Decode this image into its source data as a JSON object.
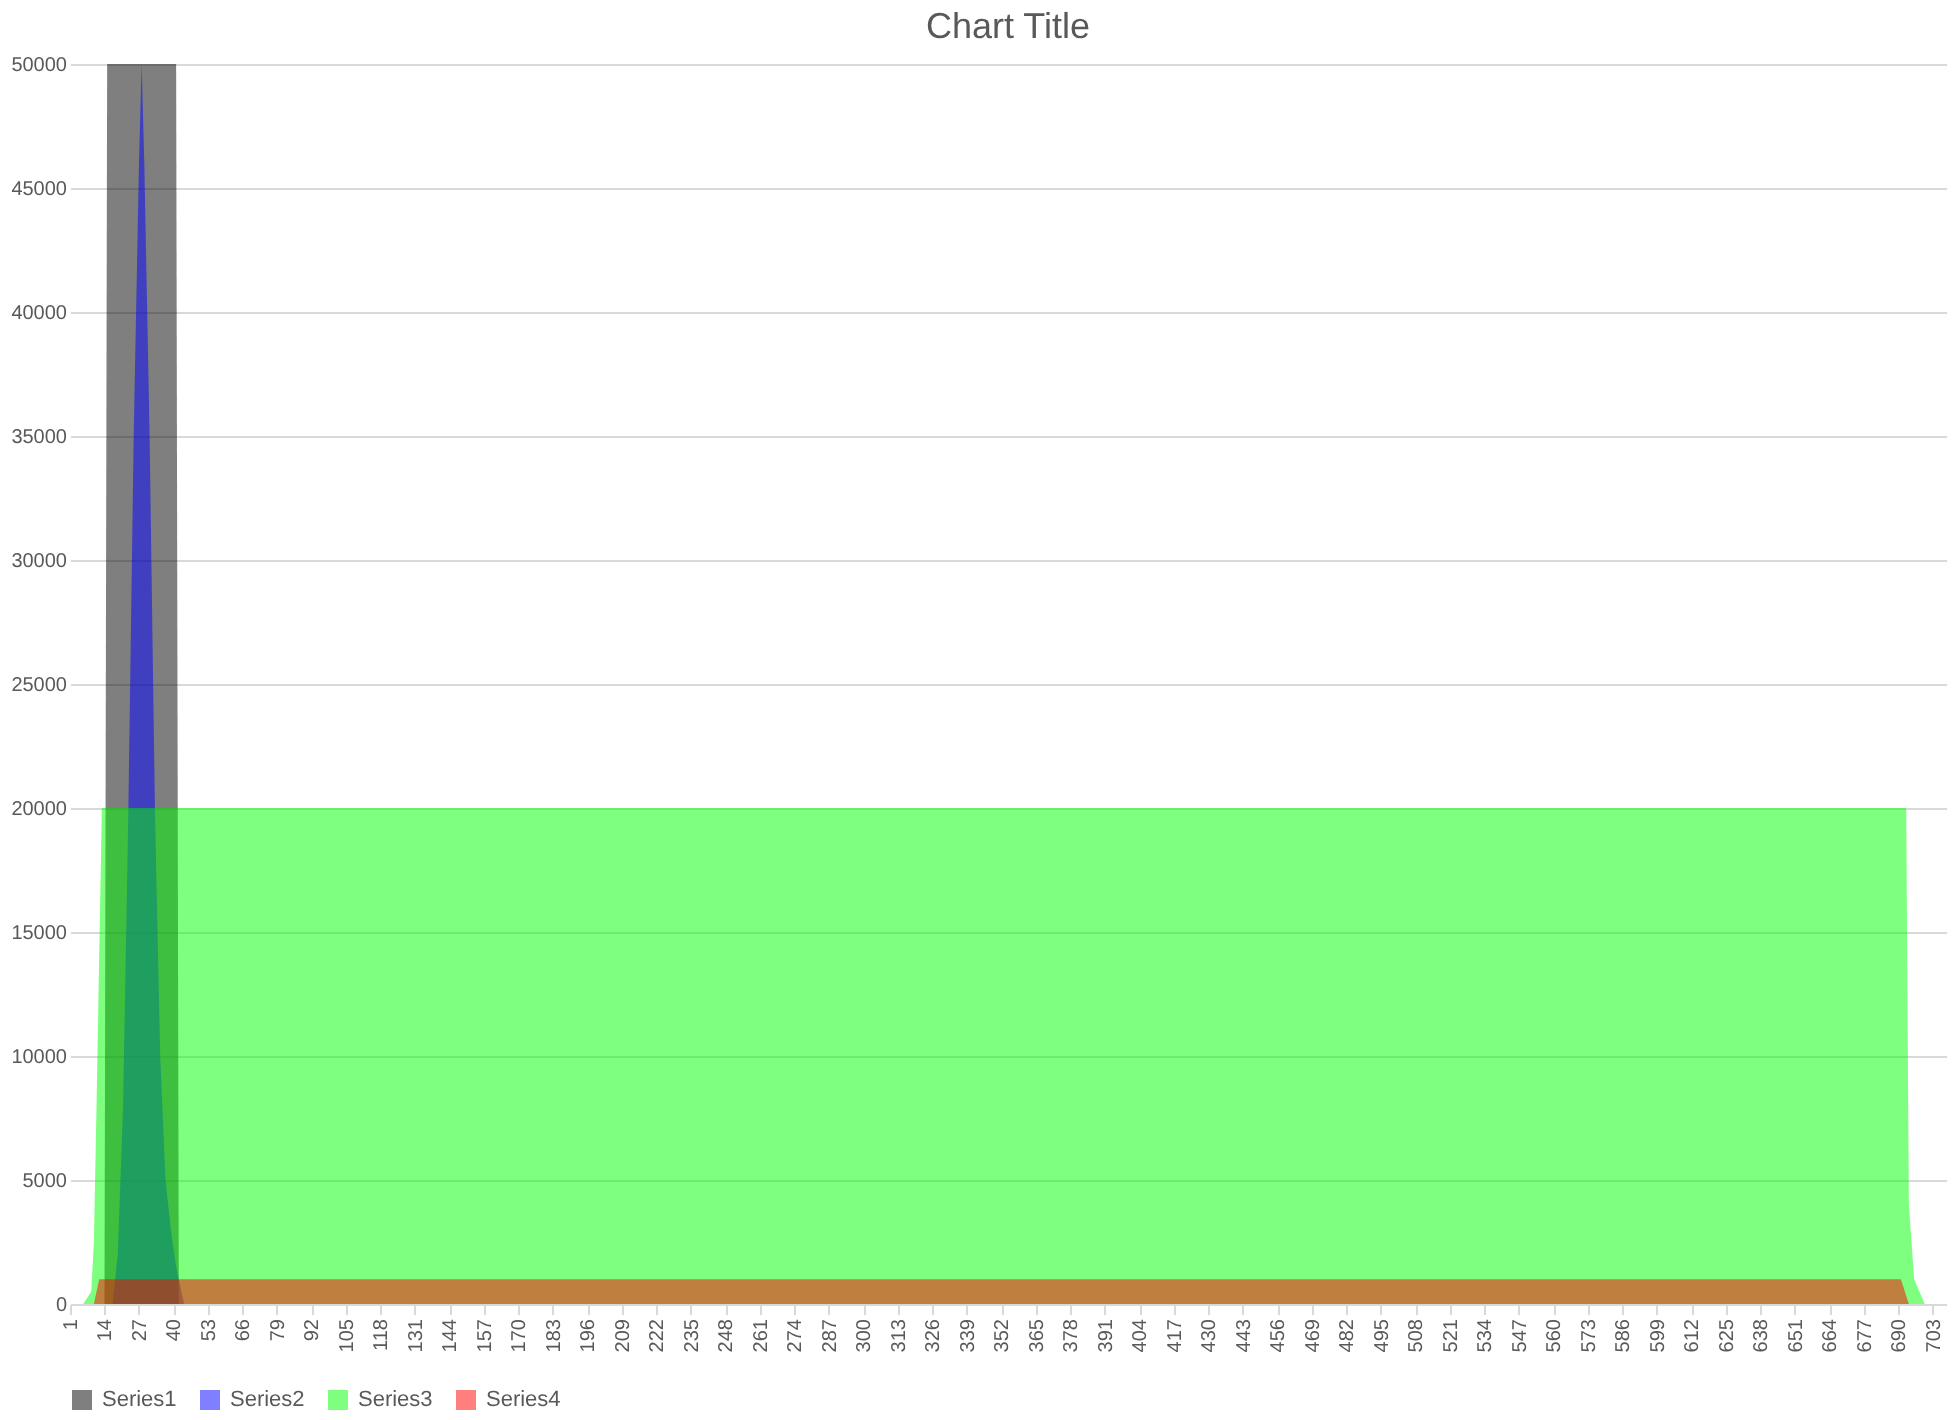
{
  "chart_data": {
    "type": "area",
    "title": "Chart Title",
    "xlim": [
      1,
      708
    ],
    "xticks": [
      1,
      14,
      27,
      40,
      53,
      66,
      79,
      92,
      105,
      118,
      131,
      144,
      157,
      170,
      183,
      196,
      209,
      222,
      235,
      248,
      261,
      274,
      287,
      300,
      313,
      326,
      339,
      352,
      365,
      378,
      391,
      404,
      417,
      430,
      443,
      456,
      469,
      482,
      495,
      508,
      521,
      534,
      547,
      560,
      573,
      586,
      599,
      612,
      625,
      638,
      651,
      664,
      677,
      690,
      703
    ],
    "ylim": [
      0,
      50000
    ],
    "yticks": [
      0,
      5000,
      10000,
      15000,
      20000,
      25000,
      30000,
      35000,
      40000,
      45000,
      50000
    ],
    "grid": "y",
    "legend": "bottom",
    "series": [
      {
        "name": "Series1",
        "color": "#000000",
        "x": [
          14,
          15,
          41,
          42
        ],
        "values": [
          0,
          50000,
          50000,
          0
        ]
      },
      {
        "name": "Series2",
        "color": "#0000ff",
        "x": [
          17,
          19,
          21,
          23,
          25,
          27,
          28,
          29,
          31,
          33,
          35,
          37,
          39,
          41,
          44
        ],
        "values": [
          0,
          2000,
          8000,
          20000,
          35000,
          46000,
          50000,
          46000,
          35000,
          20000,
          10000,
          5000,
          3000,
          1500,
          0
        ]
      },
      {
        "name": "Series3",
        "color": "#00ff00",
        "x": [
          6,
          9,
          10,
          11,
          12,
          13,
          693,
          694,
          696,
          700
        ],
        "values": [
          0,
          500,
          2500,
          8000,
          14000,
          20000,
          20000,
          4000,
          1000,
          0
        ]
      },
      {
        "name": "Series4",
        "color": "#ff0000",
        "x": [
          10,
          12,
          691,
          694
        ],
        "values": [
          0,
          1000,
          1000,
          0
        ]
      }
    ]
  }
}
